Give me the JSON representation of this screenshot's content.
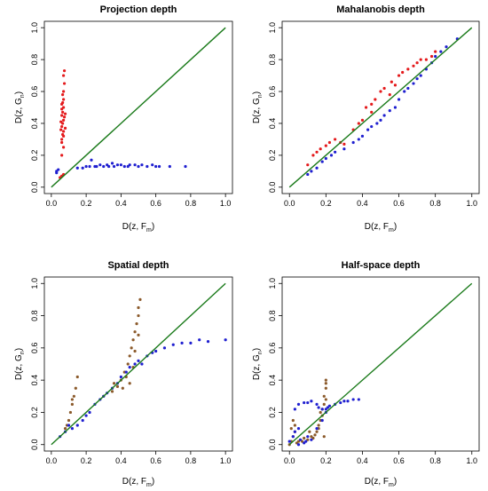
{
  "chart_data": [
    {
      "type": "scatter",
      "title": "Projection depth",
      "xlabel": "D(z, F",
      "xlabel_sub": "m",
      "ylabel": "D(z, G",
      "ylabel_sub": "n",
      "xlim": [
        0,
        1
      ],
      "ylim": [
        0,
        1
      ],
      "xticks": [
        "0.0",
        "0.2",
        "0.4",
        "0.6",
        "0.8",
        "1.0"
      ],
      "yticks": [
        "0.0",
        "0.2",
        "0.4",
        "0.6",
        "0.8",
        "1.0"
      ],
      "grid": false,
      "legend": "none",
      "reference_line": {
        "from": [
          0,
          0
        ],
        "to": [
          1,
          1
        ],
        "color": "#1a7a1a"
      },
      "series": [
        {
          "color": "#e41a1c",
          "points": [
            [
              0.05,
              0.06
            ],
            [
              0.06,
              0.07
            ],
            [
              0.07,
              0.08
            ],
            [
              0.06,
              0.2
            ],
            [
              0.07,
              0.25
            ],
            [
              0.06,
              0.3
            ],
            [
              0.065,
              0.33
            ],
            [
              0.07,
              0.35
            ],
            [
              0.06,
              0.38
            ],
            [
              0.065,
              0.4
            ],
            [
              0.07,
              0.42
            ],
            [
              0.06,
              0.45
            ],
            [
              0.065,
              0.47
            ],
            [
              0.07,
              0.5
            ],
            [
              0.06,
              0.52
            ],
            [
              0.07,
              0.55
            ],
            [
              0.065,
              0.58
            ],
            [
              0.07,
              0.6
            ],
            [
              0.075,
              0.65
            ],
            [
              0.07,
              0.7
            ],
            [
              0.075,
              0.73
            ],
            [
              0.06,
              0.28
            ],
            [
              0.07,
              0.32
            ],
            [
              0.055,
              0.36
            ],
            [
              0.075,
              0.44
            ],
            [
              0.065,
              0.53
            ],
            [
              0.06,
              0.49
            ],
            [
              0.08,
              0.37
            ],
            [
              0.08,
              0.46
            ],
            [
              0.055,
              0.41
            ]
          ]
        },
        {
          "color": "#1f1fd0",
          "points": [
            [
              0.03,
              0.1
            ],
            [
              0.04,
              0.11
            ],
            [
              0.03,
              0.09
            ],
            [
              0.15,
              0.12
            ],
            [
              0.18,
              0.12
            ],
            [
              0.2,
              0.13
            ],
            [
              0.22,
              0.13
            ],
            [
              0.23,
              0.17
            ],
            [
              0.25,
              0.13
            ],
            [
              0.28,
              0.14
            ],
            [
              0.3,
              0.13
            ],
            [
              0.32,
              0.14
            ],
            [
              0.35,
              0.15
            ],
            [
              0.38,
              0.14
            ],
            [
              0.4,
              0.14
            ],
            [
              0.42,
              0.13
            ],
            [
              0.45,
              0.14
            ],
            [
              0.48,
              0.14
            ],
            [
              0.5,
              0.13
            ],
            [
              0.52,
              0.14
            ],
            [
              0.55,
              0.13
            ],
            [
              0.58,
              0.14
            ],
            [
              0.6,
              0.13
            ],
            [
              0.62,
              0.13
            ],
            [
              0.26,
              0.13
            ],
            [
              0.33,
              0.13
            ],
            [
              0.44,
              0.13
            ],
            [
              0.36,
              0.13
            ],
            [
              0.68,
              0.13
            ],
            [
              0.77,
              0.13
            ]
          ]
        }
      ]
    },
    {
      "type": "scatter",
      "title": "Mahalanobis depth",
      "xlabel": "D(z, F",
      "xlabel_sub": "m",
      "ylabel": "D(z, G",
      "ylabel_sub": "n",
      "xlim": [
        0,
        1
      ],
      "ylim": [
        0,
        1
      ],
      "xticks": [
        "0.0",
        "0.2",
        "0.4",
        "0.6",
        "0.8",
        "1.0"
      ],
      "yticks": [
        "0.0",
        "0.2",
        "0.4",
        "0.6",
        "0.8",
        "1.0"
      ],
      "grid": false,
      "legend": "none",
      "reference_line": {
        "from": [
          0,
          0
        ],
        "to": [
          1,
          1
        ],
        "color": "#1a7a1a"
      },
      "series": [
        {
          "color": "#e41a1c",
          "points": [
            [
              0.1,
              0.14
            ],
            [
              0.13,
              0.2
            ],
            [
              0.15,
              0.22
            ],
            [
              0.17,
              0.24
            ],
            [
              0.2,
              0.26
            ],
            [
              0.22,
              0.28
            ],
            [
              0.25,
              0.3
            ],
            [
              0.28,
              0.28
            ],
            [
              0.3,
              0.27
            ],
            [
              0.35,
              0.36
            ],
            [
              0.4,
              0.42
            ],
            [
              0.42,
              0.5
            ],
            [
              0.45,
              0.52
            ],
            [
              0.47,
              0.55
            ],
            [
              0.5,
              0.6
            ],
            [
              0.52,
              0.62
            ],
            [
              0.55,
              0.58
            ],
            [
              0.58,
              0.64
            ],
            [
              0.6,
              0.7
            ],
            [
              0.62,
              0.72
            ],
            [
              0.65,
              0.74
            ],
            [
              0.68,
              0.76
            ],
            [
              0.7,
              0.78
            ],
            [
              0.72,
              0.8
            ],
            [
              0.75,
              0.8
            ],
            [
              0.78,
              0.82
            ],
            [
              0.8,
              0.85
            ],
            [
              0.45,
              0.47
            ],
            [
              0.38,
              0.4
            ],
            [
              0.56,
              0.66
            ]
          ]
        },
        {
          "color": "#1f1fd0",
          "points": [
            [
              0.1,
              0.08
            ],
            [
              0.12,
              0.1
            ],
            [
              0.15,
              0.12
            ],
            [
              0.18,
              0.16
            ],
            [
              0.2,
              0.18
            ],
            [
              0.23,
              0.2
            ],
            [
              0.25,
              0.22
            ],
            [
              0.3,
              0.24
            ],
            [
              0.35,
              0.28
            ],
            [
              0.38,
              0.3
            ],
            [
              0.4,
              0.32
            ],
            [
              0.43,
              0.36
            ],
            [
              0.45,
              0.38
            ],
            [
              0.48,
              0.4
            ],
            [
              0.5,
              0.42
            ],
            [
              0.52,
              0.45
            ],
            [
              0.55,
              0.48
            ],
            [
              0.58,
              0.5
            ],
            [
              0.6,
              0.55
            ],
            [
              0.63,
              0.6
            ],
            [
              0.65,
              0.62
            ],
            [
              0.68,
              0.65
            ],
            [
              0.7,
              0.68
            ],
            [
              0.72,
              0.7
            ],
            [
              0.75,
              0.74
            ],
            [
              0.78,
              0.78
            ],
            [
              0.8,
              0.82
            ],
            [
              0.83,
              0.85
            ],
            [
              0.86,
              0.88
            ],
            [
              0.92,
              0.93
            ]
          ]
        }
      ]
    },
    {
      "type": "scatter",
      "title": "Spatial depth",
      "xlabel": "D(z, F",
      "xlabel_sub": "m",
      "ylabel": "D(z, G",
      "ylabel_sub": "n",
      "xlim": [
        0,
        1
      ],
      "ylim": [
        0,
        1
      ],
      "xticks": [
        "0.0",
        "0.2",
        "0.4",
        "0.6",
        "0.8",
        "1.0"
      ],
      "yticks": [
        "0.0",
        "0.2",
        "0.4",
        "0.6",
        "0.8",
        "1.0"
      ],
      "grid": false,
      "legend": "none",
      "reference_line": {
        "from": [
          0,
          0
        ],
        "to": [
          1,
          1
        ],
        "color": "#1a7a1a"
      },
      "series": [
        {
          "color": "#8b5a2b",
          "points": [
            [
              0.08,
              0.1
            ],
            [
              0.1,
              0.15
            ],
            [
              0.11,
              0.2
            ],
            [
              0.12,
              0.25
            ],
            [
              0.13,
              0.3
            ],
            [
              0.14,
              0.35
            ],
            [
              0.15,
              0.42
            ],
            [
              0.3,
              0.3
            ],
            [
              0.35,
              0.33
            ],
            [
              0.38,
              0.36
            ],
            [
              0.4,
              0.4
            ],
            [
              0.42,
              0.45
            ],
            [
              0.44,
              0.5
            ],
            [
              0.45,
              0.55
            ],
            [
              0.46,
              0.6
            ],
            [
              0.47,
              0.65
            ],
            [
              0.48,
              0.7
            ],
            [
              0.49,
              0.75
            ],
            [
              0.5,
              0.8
            ],
            [
              0.5,
              0.85
            ],
            [
              0.51,
              0.9
            ],
            [
              0.45,
              0.38
            ],
            [
              0.43,
              0.42
            ],
            [
              0.47,
              0.48
            ],
            [
              0.36,
              0.38
            ],
            [
              0.41,
              0.35
            ],
            [
              0.48,
              0.58
            ],
            [
              0.5,
              0.68
            ],
            [
              0.12,
              0.28
            ],
            [
              0.09,
              0.12
            ]
          ]
        },
        {
          "color": "#1f1fd0",
          "points": [
            [
              0.05,
              0.05
            ],
            [
              0.08,
              0.08
            ],
            [
              0.1,
              0.12
            ],
            [
              0.12,
              0.1
            ],
            [
              0.15,
              0.12
            ],
            [
              0.18,
              0.15
            ],
            [
              0.2,
              0.18
            ],
            [
              0.22,
              0.2
            ],
            [
              0.25,
              0.25
            ],
            [
              0.28,
              0.28
            ],
            [
              0.3,
              0.3
            ],
            [
              0.32,
              0.32
            ],
            [
              0.35,
              0.35
            ],
            [
              0.38,
              0.38
            ],
            [
              0.4,
              0.42
            ],
            [
              0.43,
              0.45
            ],
            [
              0.45,
              0.48
            ],
            [
              0.48,
              0.5
            ],
            [
              0.5,
              0.52
            ],
            [
              0.55,
              0.55
            ],
            [
              0.58,
              0.57
            ],
            [
              0.6,
              0.58
            ],
            [
              0.65,
              0.6
            ],
            [
              0.7,
              0.62
            ],
            [
              0.75,
              0.63
            ],
            [
              0.8,
              0.63
            ],
            [
              0.85,
              0.65
            ],
            [
              0.9,
              0.64
            ],
            [
              1.0,
              0.65
            ],
            [
              0.52,
              0.5
            ]
          ]
        }
      ]
    },
    {
      "type": "scatter",
      "title": "Half-space depth",
      "xlabel": "D(z, F",
      "xlabel_sub": "m",
      "ylabel": "D(z, G",
      "ylabel_sub": "n",
      "xlim": [
        0,
        1
      ],
      "ylim": [
        0,
        1
      ],
      "xticks": [
        "0.0",
        "0.2",
        "0.4",
        "0.6",
        "0.8",
        "1.0"
      ],
      "yticks": [
        "0.0",
        "0.2",
        "0.4",
        "0.6",
        "0.8",
        "1.0"
      ],
      "grid": false,
      "legend": "none",
      "reference_line": {
        "from": [
          0,
          0
        ],
        "to": [
          1,
          1
        ],
        "color": "#1a7a1a"
      },
      "series": [
        {
          "color": "#8b5a2b",
          "points": [
            [
              0.0,
              0.0
            ],
            [
              0.01,
              0.02
            ],
            [
              0.02,
              0.05
            ],
            [
              0.03,
              0.08
            ],
            [
              0.03,
              0.12
            ],
            [
              0.05,
              0.02
            ],
            [
              0.08,
              0.04
            ],
            [
              0.1,
              0.03
            ],
            [
              0.12,
              0.05
            ],
            [
              0.15,
              0.08
            ],
            [
              0.16,
              0.12
            ],
            [
              0.17,
              0.15
            ],
            [
              0.18,
              0.18
            ],
            [
              0.18,
              0.22
            ],
            [
              0.19,
              0.25
            ],
            [
              0.19,
              0.3
            ],
            [
              0.2,
              0.35
            ],
            [
              0.2,
              0.38
            ],
            [
              0.2,
              0.4
            ],
            [
              0.17,
              0.2
            ],
            [
              0.16,
              0.1
            ],
            [
              0.14,
              0.06
            ],
            [
              0.13,
              0.04
            ],
            [
              0.07,
              0.02
            ],
            [
              0.04,
              0.01
            ],
            [
              0.02,
              0.15
            ],
            [
              0.01,
              0.1
            ],
            [
              0.11,
              0.08
            ],
            [
              0.19,
              0.05
            ],
            [
              0.2,
              0.28
            ]
          ]
        },
        {
          "color": "#1f1fd0",
          "points": [
            [
              0.0,
              0.02
            ],
            [
              0.02,
              0.05
            ],
            [
              0.03,
              0.08
            ],
            [
              0.05,
              0.1
            ],
            [
              0.03,
              0.22
            ],
            [
              0.05,
              0.25
            ],
            [
              0.08,
              0.26
            ],
            [
              0.1,
              0.26
            ],
            [
              0.12,
              0.27
            ],
            [
              0.15,
              0.25
            ],
            [
              0.18,
              0.22
            ],
            [
              0.2,
              0.2
            ],
            [
              0.22,
              0.24
            ],
            [
              0.25,
              0.25
            ],
            [
              0.28,
              0.26
            ],
            [
              0.3,
              0.27
            ],
            [
              0.32,
              0.27
            ],
            [
              0.35,
              0.28
            ],
            [
              0.38,
              0.28
            ],
            [
              0.1,
              0.05
            ],
            [
              0.12,
              0.03
            ],
            [
              0.08,
              0.01
            ],
            [
              0.05,
              0.0
            ],
            [
              0.15,
              0.1
            ],
            [
              0.18,
              0.15
            ],
            [
              0.2,
              0.22
            ],
            [
              0.21,
              0.23
            ],
            [
              0.06,
              0.03
            ],
            [
              0.09,
              0.02
            ],
            [
              0.16,
              0.23
            ]
          ]
        }
      ]
    }
  ]
}
